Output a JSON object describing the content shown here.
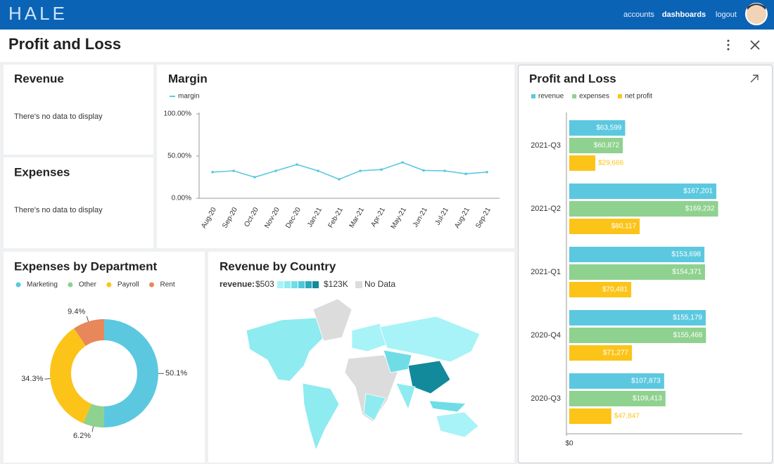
{
  "header": {
    "logo": "HALE",
    "nav": [
      "accounts",
      "dashboards",
      "logout"
    ]
  },
  "page_title": "Profit and Loss",
  "empty_panels": [
    {
      "title": "Revenue",
      "message": "There's no data to display"
    },
    {
      "title": "Expenses",
      "message": "There's no data to display"
    }
  ],
  "map_panel": {
    "title": "Revenue by Country",
    "legend": {
      "label": "revenue:",
      "min": "$503",
      "max": "$123K",
      "no_data": "No Data",
      "scale_colors": [
        "#a8f3f7",
        "#8eebf0",
        "#6fdde6",
        "#4fc8d6",
        "#2aa9bb",
        "#128a9c"
      ],
      "no_data_color": "#dcdcdc"
    }
  },
  "chart_data": [
    {
      "type": "line",
      "title": "Margin",
      "categories": [
        "Aug-20",
        "Sep-20",
        "Oct-20",
        "Nov-20",
        "Dec-20",
        "Jan-21",
        "Feb-21",
        "Mar-21",
        "Apr-21",
        "May-21",
        "Jun-21",
        "Jul-21",
        "Aug-21",
        "Sep-21"
      ],
      "series": [
        {
          "name": "margin",
          "color": "#5bc8e0",
          "values": [
            31,
            32.5,
            25,
            32.5,
            40,
            32.5,
            22.5,
            32.5,
            34,
            42.5,
            33,
            32.5,
            29,
            31
          ]
        }
      ],
      "ylim": [
        0,
        100
      ],
      "yticks": [
        {
          "value": 0,
          "label": "0.00%"
        },
        {
          "value": 50,
          "label": "50.00%"
        },
        {
          "value": 100,
          "label": "100.00%"
        }
      ]
    },
    {
      "type": "pie",
      "title": "Expenses by Department",
      "categories": [
        "Marketing",
        "Other",
        "Payroll",
        "Rent"
      ],
      "values": [
        50.1,
        6.2,
        34.3,
        9.4
      ],
      "value_labels": [
        "50.1%",
        "6.2%",
        "34.3%",
        "9.4%"
      ],
      "colors": [
        "#5bc8e0",
        "#8fd18f",
        "#fcc419",
        "#e8875a"
      ]
    },
    {
      "type": "bar",
      "orientation": "horizontal",
      "title": "Profit and Loss",
      "categories": [
        "2021-Q3",
        "2021-Q2",
        "2021-Q1",
        "2020-Q4",
        "2020-Q3"
      ],
      "series": [
        {
          "name": "revenue",
          "color": "#5bc8e0",
          "values": [
            63599,
            167201,
            153698,
            155179,
            107873
          ],
          "value_labels": [
            "$63,599",
            "$167,201",
            "$153,698",
            "$155,179",
            "$107,873"
          ]
        },
        {
          "name": "expenses",
          "color": "#8fd18f",
          "values": [
            60872,
            169232,
            154371,
            155468,
            109413
          ],
          "value_labels": [
            "$60,872",
            "$169,232",
            "$154,371",
            "$155,468",
            "$109,413"
          ]
        },
        {
          "name": "net profit",
          "color": "#fcc419",
          "values": [
            29666,
            80117,
            70481,
            71277,
            47847
          ],
          "value_labels": [
            "$29,666",
            "$80,117",
            "$70,481",
            "$71,277",
            "$47,847"
          ]
        }
      ],
      "xlim": [
        0,
        200000
      ],
      "xticks": [
        {
          "value": 0,
          "label": "$0"
        }
      ]
    }
  ]
}
